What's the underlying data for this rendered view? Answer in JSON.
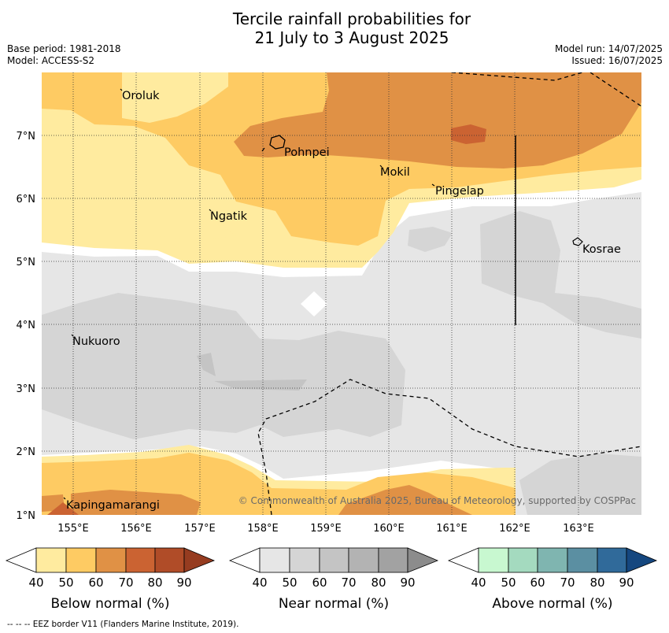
{
  "title": {
    "line1": "Tercile rainfall probabilities for",
    "line2": "21 July to 3 August 2025"
  },
  "meta": {
    "base_period": "Base period: 1981-2018",
    "model": "Model: ACCESS-S2",
    "model_run": "Model run: 14/07/2025",
    "issued": "Issued: 16/07/2025"
  },
  "map": {
    "lon_ticks": [
      "155°E",
      "156°E",
      "157°E",
      "158°E",
      "159°E",
      "160°E",
      "161°E",
      "162°E",
      "163°E"
    ],
    "lat_ticks": [
      "7°N",
      "6°N",
      "5°N",
      "4°N",
      "3°N",
      "2°N",
      "1°N"
    ],
    "places": [
      "Oroluk",
      "Pohnpei",
      "Mokil",
      "Pingelap",
      "Ngatik",
      "Kosrae",
      "Nukuoro",
      "Kapingamarangi"
    ],
    "copyright": "© Commonwealth of Australia 2025, Bureau of Meteorology, supported by COSPPac"
  },
  "colorbars": {
    "below": {
      "label": "Below normal (%)",
      "ticks": [
        "40",
        "50",
        "60",
        "70",
        "80",
        "90"
      ],
      "colors": [
        "#ffeb9f",
        "#fecb63",
        "#e09145",
        "#cb6332",
        "#b04c28",
        "#963c20"
      ]
    },
    "near": {
      "label": "Near normal (%)",
      "ticks": [
        "40",
        "50",
        "60",
        "70",
        "80",
        "90"
      ],
      "colors": [
        "#e6e6e6",
        "#d5d5d5",
        "#c4c4c4",
        "#b3b3b3",
        "#a2a2a2",
        "#8c8c8c"
      ]
    },
    "above": {
      "label": "Above normal (%)",
      "ticks": [
        "40",
        "50",
        "60",
        "70",
        "80",
        "90"
      ],
      "colors": [
        "#c8f8d0",
        "#a4dabf",
        "#7fb5b0",
        "#5b8fa2",
        "#306a9a",
        "#15477f"
      ]
    }
  },
  "footer": "--  --  -- EEZ border V11 (Flanders Marine Institute, 2019)."
}
